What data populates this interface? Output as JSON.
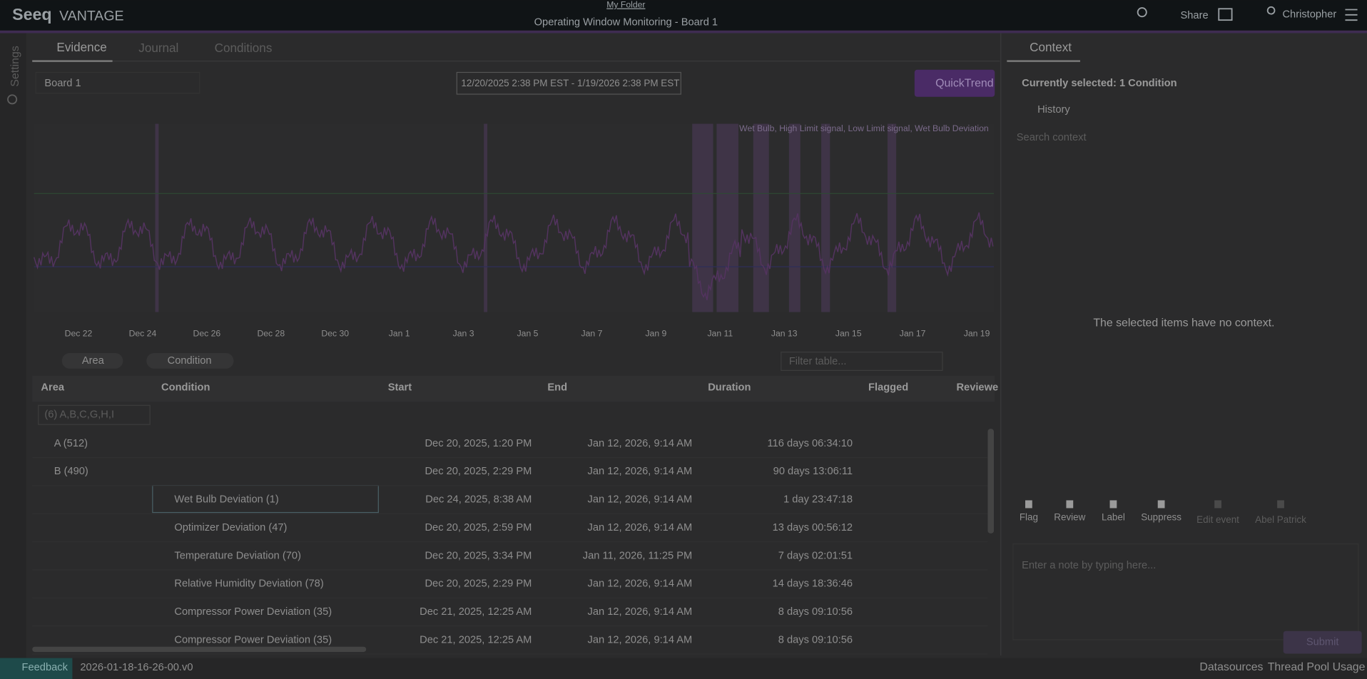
{
  "header": {
    "logo": "Seeq",
    "product": "VANTAGE",
    "folder": "My Folder",
    "title": "Operating Window Monitoring - Board 1",
    "share": "Share",
    "user": "Christopher"
  },
  "side": "Settings",
  "tabs": [
    "Evidence",
    "Journal",
    "Conditions"
  ],
  "toolbar": {
    "board": "Board 1",
    "date_range": "12/20/2025 2:38 PM  EST  -  1/19/2026 2:38 PM  EST",
    "quicktrend": "QuickTrend"
  },
  "trend": {
    "legend": "Wet Bulb, High Limit signal, Low Limit signal, Wet Bulb Deviation",
    "x_labels": [
      "Dec 22",
      "Dec 24",
      "Dec 26",
      "Dec 28",
      "Dec 30",
      "Jan 1",
      "Jan 3",
      "Jan 5",
      "Jan 7",
      "Jan 9",
      "Jan 11",
      "Jan 13",
      "Jan 15",
      "Jan 17",
      "Jan 19"
    ]
  },
  "table": {
    "groups": [
      "Area",
      "Condition"
    ],
    "filter": "Filter table...",
    "columns": [
      "Area",
      "Condition",
      "Start",
      "End",
      "Duration",
      "Flagged",
      "Reviewe"
    ],
    "area_filter": "(6) A,B,C,G,H,I",
    "rows": [
      [
        "A (512)",
        "",
        "Dec 20, 2025, 1:20 PM",
        "Jan 12, 2026, 9:14 AM",
        "116 days 06:34:10"
      ],
      [
        "B (490)",
        "",
        "Dec 20, 2025, 2:29 PM",
        "Jan 12, 2026, 9:14 AM",
        "90 days 13:06:11"
      ],
      [
        "",
        "Wet Bulb Deviation (1)",
        "Dec 24, 2025, 8:38 AM",
        "Jan 12, 2026, 9:14 AM",
        "1 day 23:47:18"
      ],
      [
        "",
        "Optimizer Deviation (47)",
        "Dec 20, 2025, 2:59 PM",
        "Jan 12, 2026, 9:14 AM",
        "13 days 00:56:12"
      ],
      [
        "",
        "Temperature Deviation (70)",
        "Dec 20, 2025, 3:34 PM",
        "Jan 11, 2026, 11:25 PM",
        "7 days 02:01:51"
      ],
      [
        "",
        "Relative Humidity Deviation (78)",
        "Dec 20, 2025, 2:29 PM",
        "Jan 12, 2026, 9:14 AM",
        "14 days 18:36:46"
      ],
      [
        "",
        "Compressor Power Deviation (35)",
        "Dec 21, 2025, 12:25 AM",
        "Jan 12, 2026, 9:14 AM",
        "8 days 09:10:56"
      ],
      [
        "",
        "Compressor Power Deviation (35)",
        "Dec 21, 2025, 12:25 AM",
        "Jan 12, 2026, 9:14 AM",
        "8 days 09:10:56"
      ]
    ]
  },
  "context": {
    "title": "Context",
    "selected": "Currently selected: 1 Condition",
    "history": "History",
    "search": "Search context",
    "empty": "The selected items have no context.",
    "actions": [
      "Flag",
      "Review",
      "Label",
      "Suppress",
      "Edit event",
      "Abel Patrick"
    ],
    "note": "Enter a note by typing here...",
    "submit": "Submit"
  },
  "footer": {
    "feedback": "Feedback",
    "version": "2026-01-18-16-26-00.v0",
    "datasources": "Datasources",
    "thread": "Thread Pool Usage"
  }
}
